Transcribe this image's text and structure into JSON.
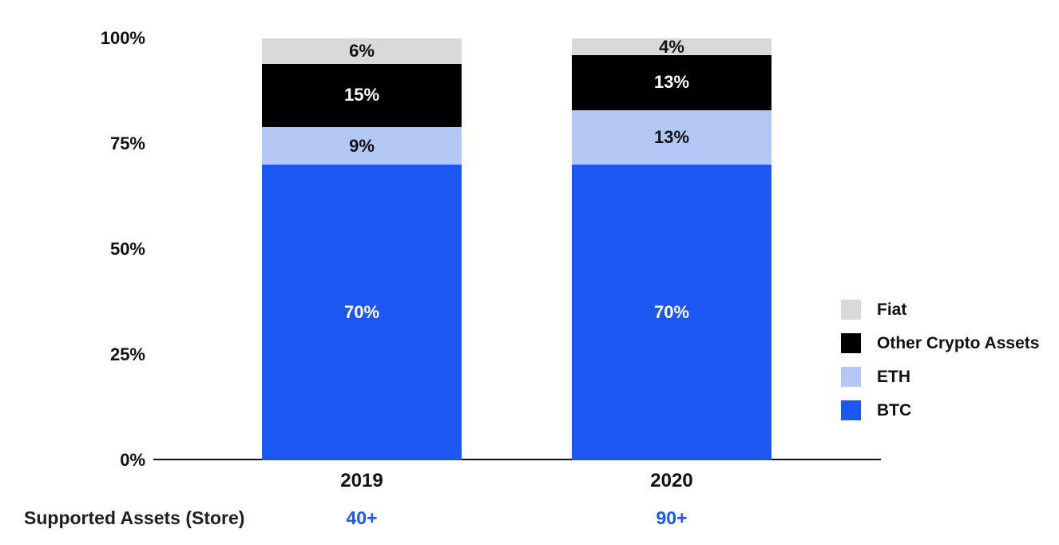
{
  "page": {
    "background": "#ffffff",
    "text_color": "#111111"
  },
  "chart_data": {
    "type": "bar",
    "variant": "stacked-percentage",
    "title": "",
    "categories": [
      "2019",
      "2020"
    ],
    "series": [
      {
        "name": "Fiat",
        "color": "#d9d9d9",
        "label_color": "#111111",
        "values": [
          6,
          4
        ]
      },
      {
        "name": "Other Crypto Assets",
        "color": "#000000",
        "label_color": "#ffffff",
        "values": [
          15,
          13
        ]
      },
      {
        "name": "ETH",
        "color": "#b3c8f4",
        "label_color": "#111111",
        "values": [
          9,
          13
        ]
      },
      {
        "name": "BTC",
        "color": "#1b57f0",
        "label_color": "#ffffff",
        "values": [
          70,
          70
        ]
      }
    ],
    "y_ticks": [
      "100%",
      "75%",
      "50%",
      "25%",
      "0%"
    ],
    "y_tick_values": [
      100,
      75,
      50,
      25,
      0
    ],
    "ylim": [
      0,
      100
    ],
    "value_suffix": "%",
    "grid": false,
    "legend_position": "right"
  },
  "footer": {
    "label": "Supported Assets (Store)",
    "values": [
      "40+",
      "90+"
    ],
    "value_color": "#1b57f0"
  }
}
